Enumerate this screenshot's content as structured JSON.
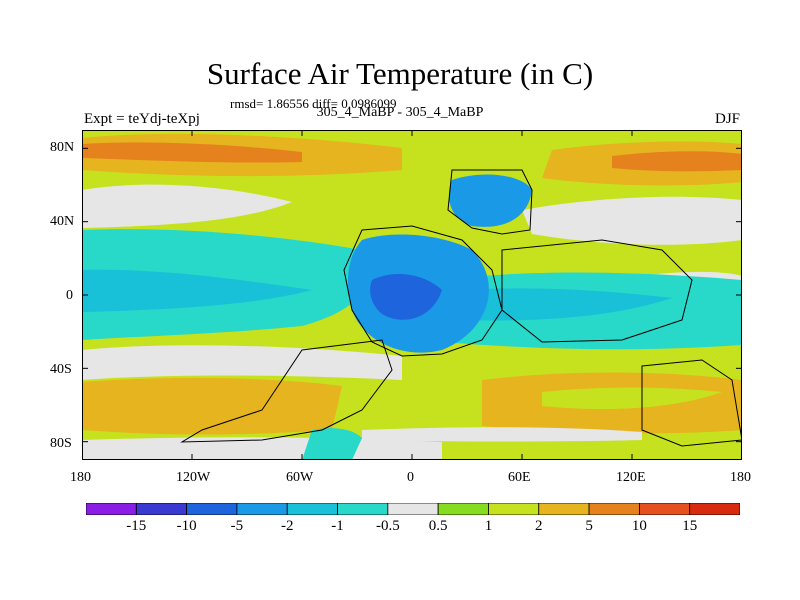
{
  "header": {
    "title": "Surface Air Temperature (in C)",
    "stats": "rmsd= 1.86556 diff= 0.0986099",
    "experiment": "Expt = teYdj-teXpj",
    "subtitle": "305_4_MaBP - 305_4_MaBP",
    "season": "DJF"
  },
  "map": {
    "lon_ticks": [
      "180",
      "120W",
      "60W",
      "0",
      "60E",
      "120E",
      "180"
    ],
    "lat_ticks": [
      "80N",
      "40N",
      "0",
      "40S",
      "80S"
    ],
    "lon_range": [
      -180,
      180
    ],
    "lat_range": [
      -90,
      90
    ]
  },
  "colorbar": {
    "labels": [
      "-15",
      "-10",
      "-5",
      "-2",
      "-1",
      "-0.5",
      "0.5",
      "1",
      "2",
      "5",
      "10",
      "15"
    ],
    "colors": [
      "#8a1ee6",
      "#3a3ad2",
      "#1e64dc",
      "#1a9ae6",
      "#18c0d8",
      "#28d8c8",
      "#e6e6e6",
      "#86dc1e",
      "#c6e21e",
      "#e6b41e",
      "#e6821e",
      "#e6501e",
      "#d82a0e"
    ]
  }
}
